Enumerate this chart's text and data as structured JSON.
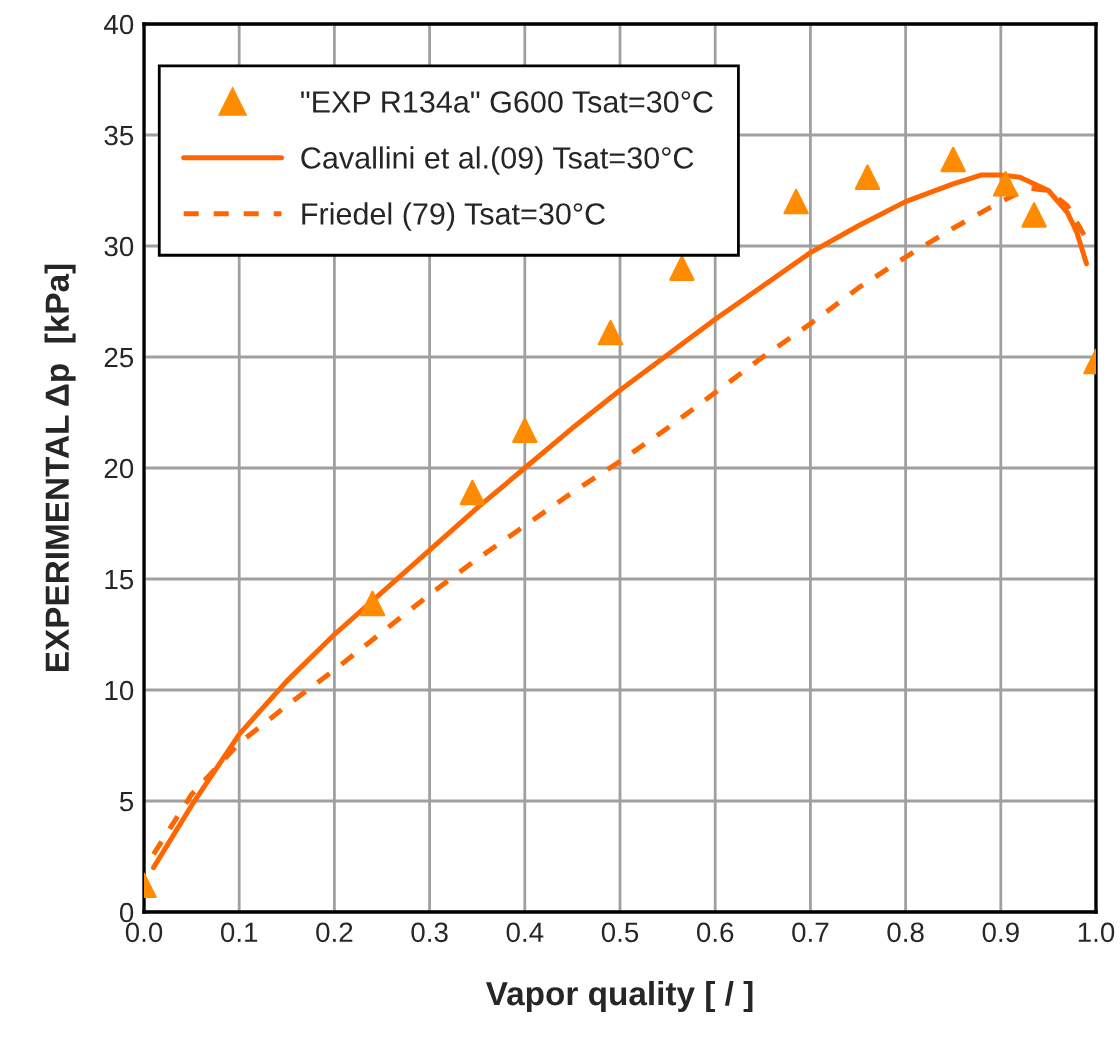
{
  "chart_data": {
    "type": "scatter",
    "xlabel": "Vapor quality [ / ]",
    "ylabel": "EXPERIMENTAL Δp  [kPa]",
    "xlim": [
      0,
      1
    ],
    "xticks": [
      {
        "value": 0,
        "label": "0.0"
      },
      0.1,
      0.2,
      0.3,
      0.4,
      0.5,
      0.6,
      0.7,
      0.8,
      0.9,
      {
        "value": 1,
        "label": "1.0"
      }
    ],
    "ylim": [
      0,
      40
    ],
    "yticks": [
      0,
      5,
      10,
      15,
      20,
      25,
      30,
      35,
      40
    ],
    "grid": true,
    "legend": "top left",
    "series": [
      {
        "name": "\"EXP R134a\" G600 Tsat=30°C",
        "marker": "triangle",
        "color": "#ff8c00",
        "x": [
          0.0,
          0.24,
          0.345,
          0.4,
          0.49,
          0.565,
          0.685,
          0.76,
          0.85,
          0.905,
          0.935,
          1.0
        ],
        "values": [
          1.2,
          13.9,
          18.9,
          21.7,
          26.1,
          29.0,
          32.0,
          33.1,
          33.9,
          32.8,
          31.4,
          24.8
        ]
      },
      {
        "name": "Cavallini et al.(09) Tsat=30°C",
        "type": "line",
        "line_style": "solid",
        "color": "#ff6600",
        "x": [
          0.01,
          0.05,
          0.1,
          0.15,
          0.2,
          0.25,
          0.3,
          0.35,
          0.4,
          0.45,
          0.5,
          0.55,
          0.6,
          0.65,
          0.7,
          0.75,
          0.8,
          0.85,
          0.88,
          0.9,
          0.92,
          0.95,
          0.97,
          0.98,
          0.99
        ],
        "values": [
          2.0,
          4.8,
          8.0,
          10.4,
          12.5,
          14.4,
          16.3,
          18.2,
          20.0,
          21.8,
          23.5,
          25.1,
          26.7,
          28.2,
          29.7,
          30.9,
          32.0,
          32.8,
          33.2,
          33.2,
          33.1,
          32.5,
          31.5,
          30.6,
          29.2
        ]
      },
      {
        "name": "Friedel (79) Tsat=30°C",
        "type": "line",
        "line_style": "dashed",
        "color": "#ff6600",
        "x": [
          0.01,
          0.05,
          0.1,
          0.15,
          0.2,
          0.25,
          0.3,
          0.35,
          0.4,
          0.45,
          0.5,
          0.55,
          0.6,
          0.65,
          0.7,
          0.75,
          0.8,
          0.85,
          0.9,
          0.93,
          0.95,
          0.97,
          0.99
        ],
        "values": [
          2.6,
          5.3,
          7.6,
          9.3,
          10.9,
          12.6,
          14.3,
          15.9,
          17.4,
          18.9,
          20.3,
          21.8,
          23.4,
          25.0,
          26.5,
          28.1,
          29.5,
          30.8,
          32.0,
          32.6,
          32.5,
          31.8,
          30.3
        ]
      }
    ]
  }
}
